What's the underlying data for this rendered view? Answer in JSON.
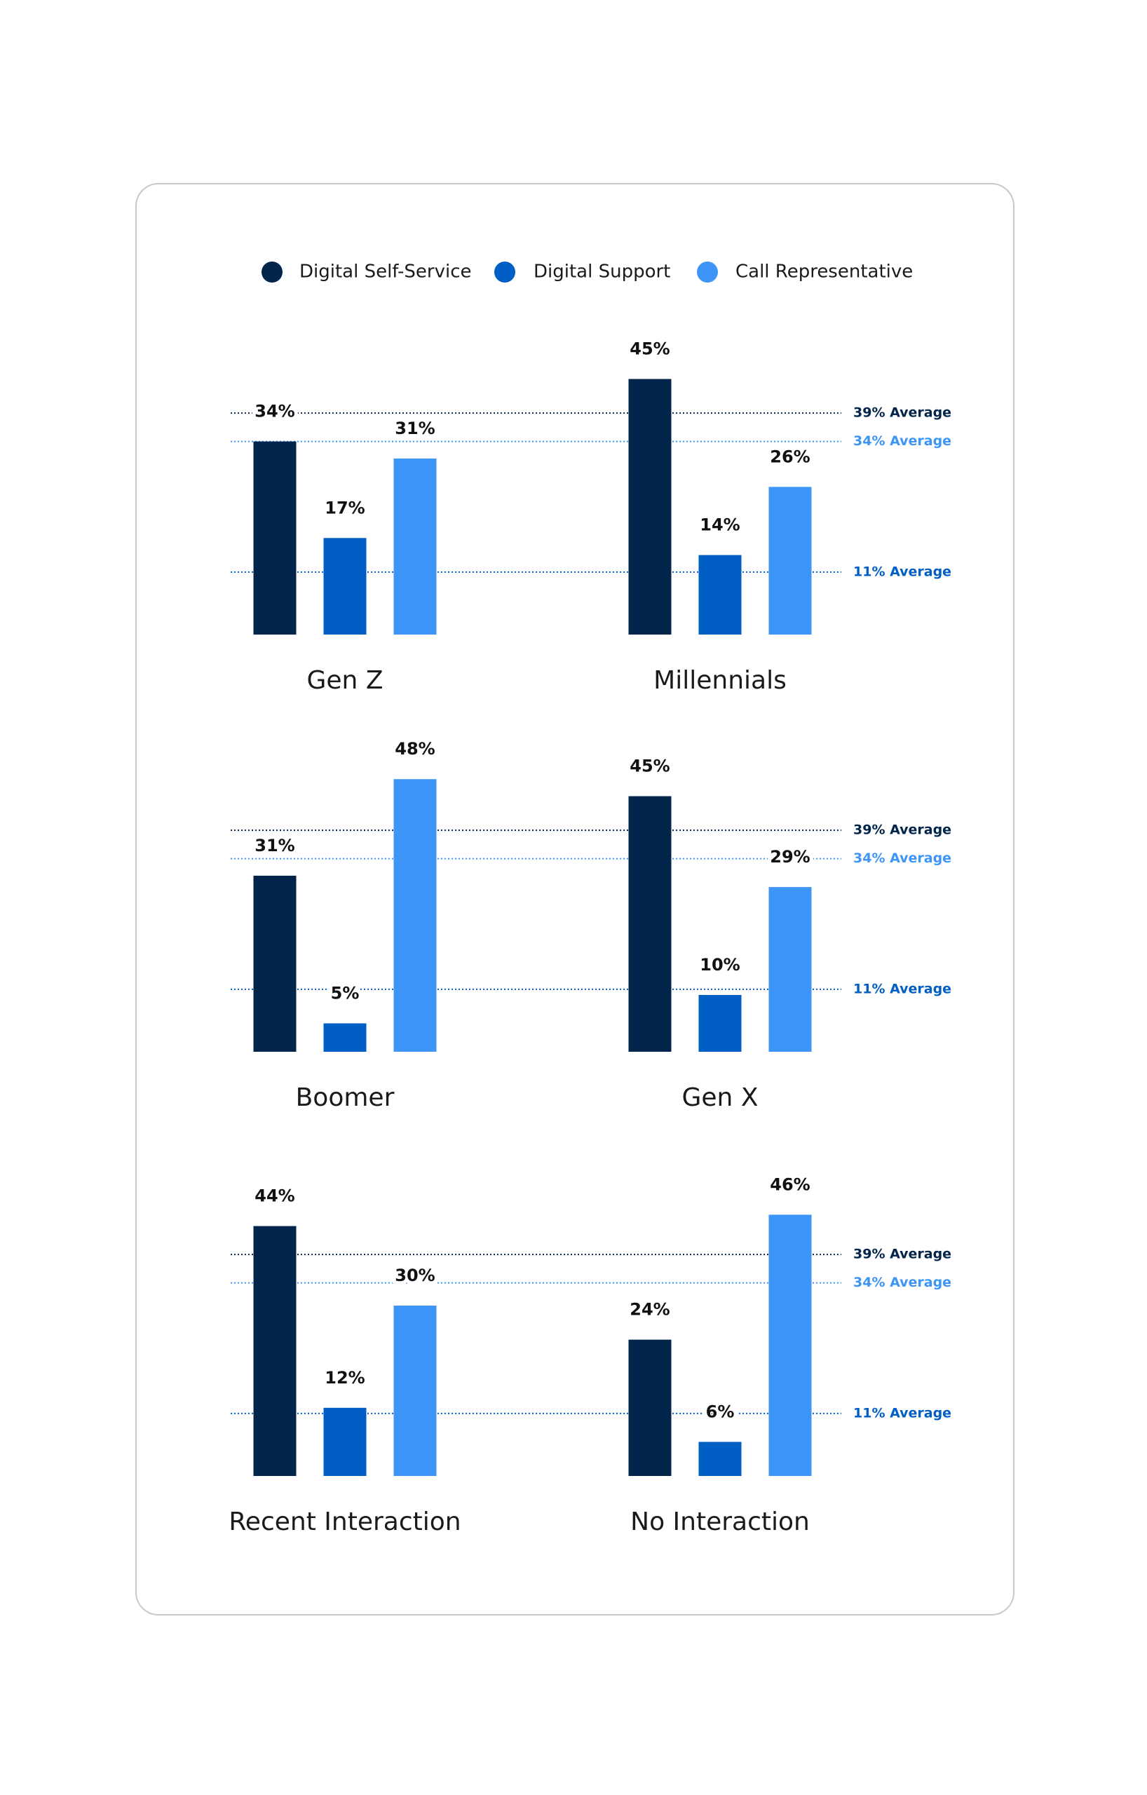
{
  "chart_data": {
    "type": "bar",
    "legend": "top",
    "categories": [
      "Gen Z",
      "Millennials",
      "Boomer",
      "Gen X",
      "Recent Interaction",
      "No Interaction"
    ],
    "series": [
      {
        "name": "Digital Self-Service",
        "color": "#00244a",
        "values": [
          34,
          45,
          31,
          45,
          44,
          24
        ],
        "value_labels": [
          "34%",
          "45%",
          "31%",
          "45%",
          "44%",
          "24%"
        ]
      },
      {
        "name": "Digital Support",
        "color": "#005ec4",
        "values": [
          17,
          14,
          5,
          10,
          12,
          6
        ],
        "value_labels": [
          "17%",
          "14%",
          "5%",
          "10%",
          "12%",
          "6%"
        ]
      },
      {
        "name": "Call Representative",
        "color": "#3d96f7",
        "values": [
          31,
          26,
          48,
          29,
          30,
          46
        ],
        "value_labels": [
          "31%",
          "26%",
          "48%",
          "29%",
          "30%",
          "46%"
        ]
      }
    ],
    "reference_lines": [
      {
        "value": 39,
        "label": "39% Average",
        "color": "#00244a"
      },
      {
        "value": 34,
        "label": "34% Average",
        "color": "#3d96f7"
      },
      {
        "value": 11,
        "label": "11% Average",
        "color": "#005ec4"
      }
    ]
  }
}
